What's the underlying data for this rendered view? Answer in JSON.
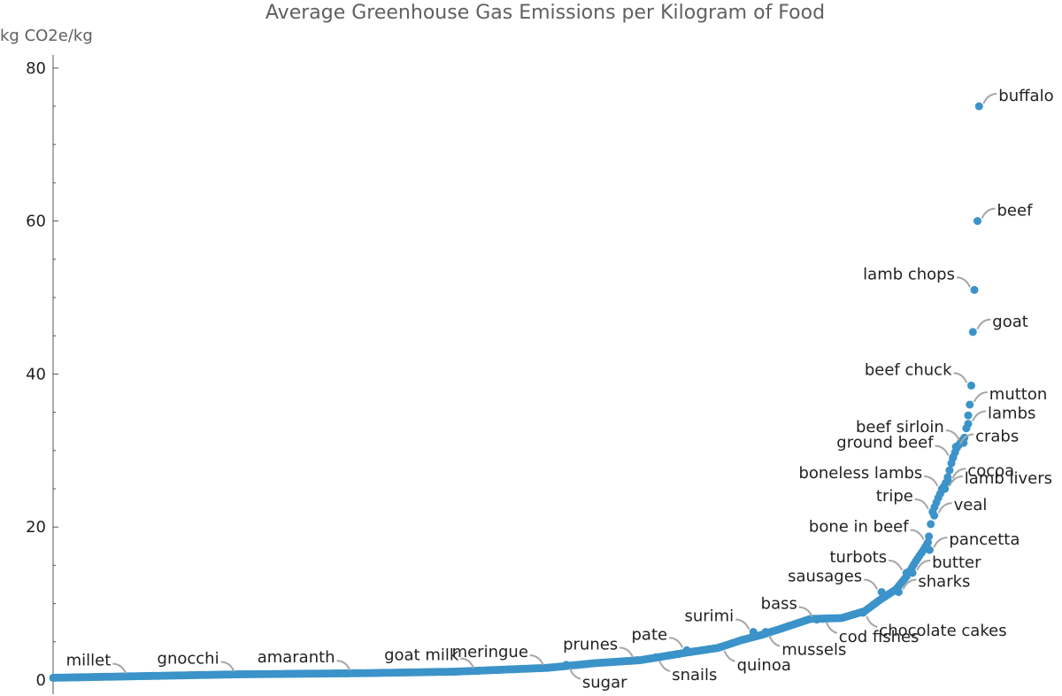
{
  "chart_data": {
    "type": "scatter",
    "title": "Average Greenhouse Gas Emissions per Kilogram of Food",
    "ylabel": "kg CO2e/kg",
    "ylim": [
      0,
      82
    ],
    "yticks": [
      0,
      20,
      40,
      60,
      80
    ],
    "n_points": 490,
    "colors": {
      "points": "#3b93c9",
      "leader": "#a6a6a6",
      "axis": "#555555",
      "text": "#222222",
      "title": "#606060"
    },
    "labeled_points": [
      {
        "label": "millet",
        "rank": 50,
        "value": 0.5,
        "side": "left"
      },
      {
        "label": "gnocchi",
        "rank": 120,
        "value": 0.75,
        "side": "left"
      },
      {
        "label": "amaranth",
        "rank": 195,
        "value": 0.9,
        "side": "left"
      },
      {
        "label": "goat milk",
        "rank": 275,
        "value": 1.2,
        "side": "left"
      },
      {
        "label": "meringue",
        "rank": 320,
        "value": 1.6,
        "side": "left"
      },
      {
        "label": "sugar",
        "rank": 332,
        "value": 2.0,
        "side": "below"
      },
      {
        "label": "prunes",
        "rank": 378,
        "value": 2.6,
        "side": "left"
      },
      {
        "label": "snails",
        "rank": 390,
        "value": 3.0,
        "side": "below"
      },
      {
        "label": "pate",
        "rank": 410,
        "value": 3.9,
        "side": "left"
      },
      {
        "label": "quinoa",
        "rank": 432,
        "value": 4.3,
        "side": "below"
      },
      {
        "label": "surimi",
        "rank": 453,
        "value": 6.3,
        "side": "left"
      },
      {
        "label": "mussels",
        "rank": 461,
        "value": 6.3,
        "side": "below"
      },
      {
        "label": "bass",
        "rank": 494,
        "value": 7.9,
        "side": "left"
      },
      {
        "label": "cod fishes",
        "rank": 498,
        "value": 8.0,
        "side": "below"
      },
      {
        "label": "chocolate cakes",
        "rank": 524,
        "value": 8.8,
        "side": "below"
      },
      {
        "label": "sausages",
        "rank": 536,
        "value": 11.5,
        "side": "left"
      },
      {
        "label": "sharks",
        "rank": 547,
        "value": 11.5,
        "side": "right"
      },
      {
        "label": "turbots",
        "rank": 552,
        "value": 14.0,
        "side": "left"
      },
      {
        "label": "butter",
        "rank": 556,
        "value": 14.0,
        "side": "right"
      },
      {
        "label": "bone in beef",
        "rank": 566,
        "value": 18.0,
        "side": "left"
      },
      {
        "label": "pancetta",
        "rank": 567,
        "value": 17.0,
        "side": "right"
      },
      {
        "label": "tripe",
        "rank": 569,
        "value": 22.0,
        "side": "left"
      },
      {
        "label": "veal",
        "rank": 570,
        "value": 21.5,
        "side": "right"
      },
      {
        "label": "boneless lambs",
        "rank": 575,
        "value": 25.0,
        "side": "left"
      },
      {
        "label": "lamb livers",
        "rank": 577,
        "value": 25.0,
        "side": "right"
      },
      {
        "label": "cocoa",
        "rank": 579,
        "value": 26.0,
        "side": "right"
      },
      {
        "label": "ground beef",
        "rank": 582,
        "value": 29.0,
        "side": "left"
      },
      {
        "label": "crabs",
        "rank": 584,
        "value": 30.5,
        "side": "right"
      },
      {
        "label": "beef sirloin",
        "rank": 589,
        "value": 31.0,
        "side": "left"
      },
      {
        "label": "lambs",
        "rank": 592,
        "value": 33.5,
        "side": "right"
      },
      {
        "label": "mutton",
        "rank": 593,
        "value": 36.0,
        "side": "right"
      },
      {
        "label": "beef chuck",
        "rank": 594,
        "value": 38.5,
        "side": "left"
      },
      {
        "label": "goat",
        "rank": 595,
        "value": 45.5,
        "side": "right"
      },
      {
        "label": "lamb chops",
        "rank": 596,
        "value": 51.0,
        "side": "left"
      },
      {
        "label": "beef",
        "rank": 598,
        "value": 60.0,
        "side": "right"
      },
      {
        "label": "buffalo",
        "rank": 599,
        "value": 75.0,
        "side": "right"
      }
    ],
    "curve_anchors": [
      [
        0,
        0.3
      ],
      [
        40,
        0.45
      ],
      [
        120,
        0.75
      ],
      [
        200,
        0.9
      ],
      [
        260,
        1.1
      ],
      [
        320,
        1.6
      ],
      [
        350,
        2.2
      ],
      [
        380,
        2.6
      ],
      [
        410,
        3.6
      ],
      [
        430,
        4.2
      ],
      [
        445,
        5.2
      ],
      [
        460,
        6.0
      ],
      [
        475,
        7.0
      ],
      [
        490,
        8.0
      ],
      [
        510,
        8.1
      ],
      [
        525,
        9.0
      ],
      [
        535,
        10.5
      ],
      [
        545,
        11.8
      ],
      [
        552,
        13.5
      ],
      [
        558,
        15.5
      ],
      [
        563,
        17.0
      ],
      [
        566,
        18.0
      ],
      [
        569,
        22.0
      ],
      [
        573,
        24.0
      ],
      [
        578,
        26.0
      ],
      [
        582,
        29.0
      ],
      [
        585,
        30.5
      ],
      [
        590,
        31.8
      ],
      [
        593,
        36.0
      ],
      [
        594,
        38.5
      ],
      [
        596,
        45.5
      ],
      [
        597,
        51.0
      ],
      [
        598,
        60.0
      ],
      [
        599,
        75.0
      ]
    ]
  }
}
